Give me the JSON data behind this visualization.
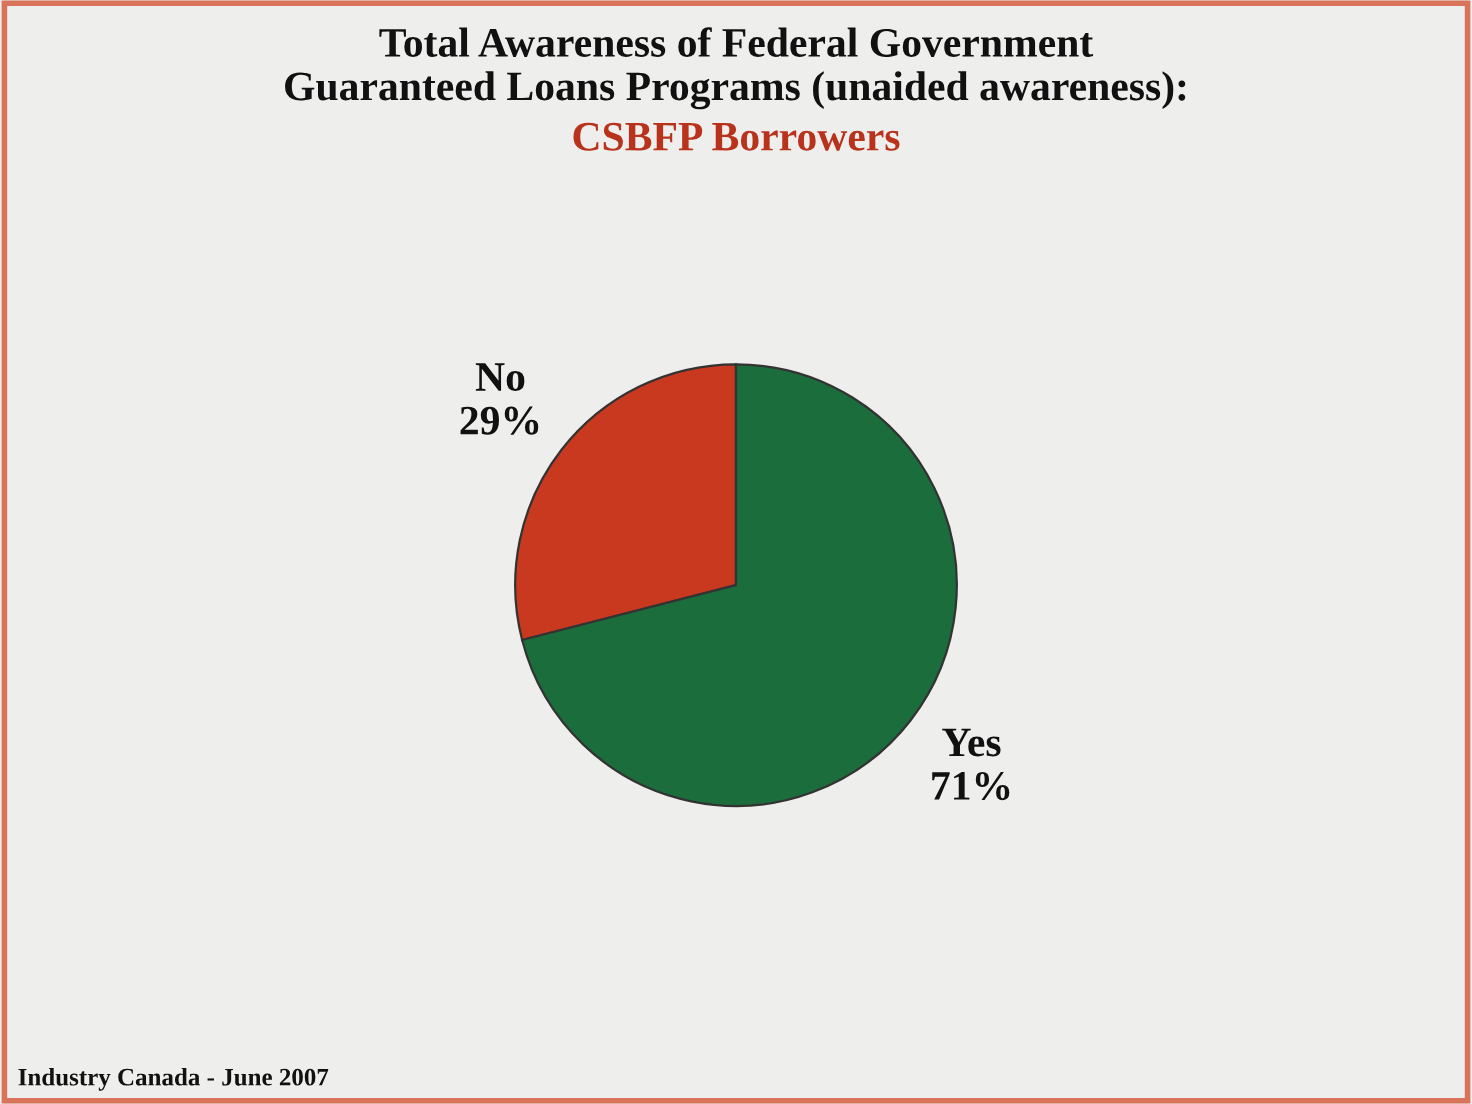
{
  "chart_data": {
    "type": "pie",
    "title": "Total Awareness of Federal Government\nGuaranteed Loans Programs (unaided awareness):",
    "subtitle": "CSBFP Borrowers",
    "categories": [
      "No",
      "Yes"
    ],
    "values": [
      29,
      71
    ],
    "colors": [
      "#c8391f",
      "#1b6e3c"
    ],
    "value_labels": [
      "29%",
      "71%"
    ],
    "annotations": [
      "Industry Canada - June 2007"
    ]
  }
}
